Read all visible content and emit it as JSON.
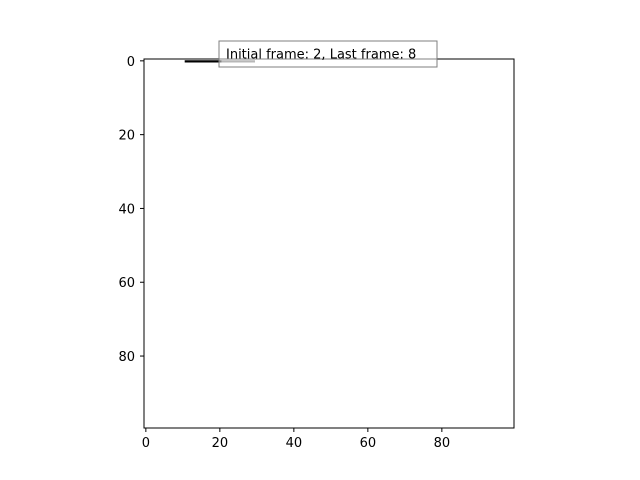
{
  "chart_data": {
    "type": "image",
    "xlim": [
      0,
      99
    ],
    "ylim": [
      99,
      0
    ],
    "y_inverted": true,
    "grid": false,
    "x_ticks": [
      0,
      20,
      40,
      60,
      80
    ],
    "y_ticks": [
      0,
      20,
      40,
      60,
      80
    ],
    "x_tick_labels": [
      "0",
      "20",
      "40",
      "60",
      "80"
    ],
    "y_tick_labels": [
      "0",
      "20",
      "40",
      "60",
      "80"
    ],
    "segments": [
      {
        "name": "",
        "x": [
          10.5,
          20.5
        ],
        "y": [
          0,
          0
        ],
        "color": "#000000"
      },
      {
        "name": "",
        "x": [
          20.5,
          29.5
        ],
        "y": [
          0,
          0
        ],
        "color": "#6e6e6e"
      }
    ],
    "annotation": {
      "text": "Initial frame: 2, Last frame: 8",
      "placement": "top-center"
    }
  }
}
